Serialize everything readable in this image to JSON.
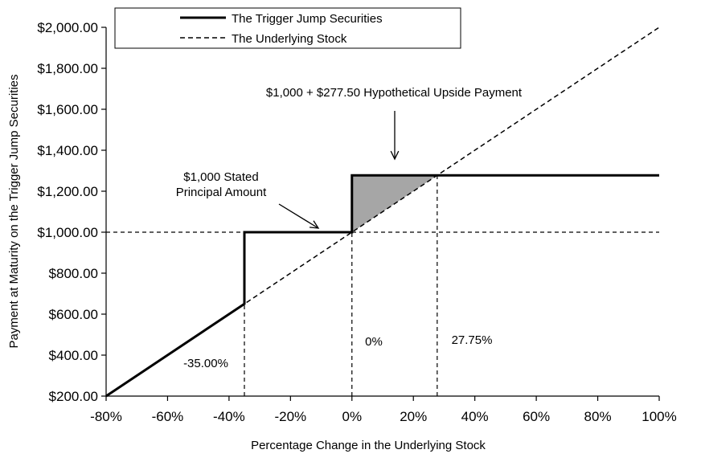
{
  "chart_data": {
    "type": "line",
    "xlabel": "Percentage Change in the Underlying Stock",
    "ylabel": "Payment at Maturity on the Trigger Jump Securities",
    "xlim": [
      -80,
      100
    ],
    "ylim": [
      200,
      2000
    ],
    "x_ticks": [
      -80,
      -60,
      -40,
      -20,
      0,
      20,
      40,
      60,
      80,
      100
    ],
    "x_tick_labels": [
      "-80%",
      "-60%",
      "-40%",
      "-20%",
      "0%",
      "20%",
      "40%",
      "60%",
      "80%",
      "100%"
    ],
    "y_ticks": [
      200,
      400,
      600,
      800,
      1000,
      1200,
      1400,
      1600,
      1800,
      2000
    ],
    "y_tick_labels": [
      "$200.00",
      "$400.00",
      "$600.00",
      "$800.00",
      "$1,000.00",
      "$1,200.00",
      "$1,400.00",
      "$1,600.00",
      "$1,800.00",
      "$2,000.00"
    ],
    "grid": false,
    "legend_position": "top-left",
    "series": [
      {
        "name": "The Trigger Jump Securities",
        "style": "solid",
        "color": "#000000",
        "points": [
          [
            -80,
            200
          ],
          [
            -35,
            650
          ],
          [
            -35,
            1000
          ],
          [
            0,
            1000
          ],
          [
            0,
            1277.5
          ],
          [
            100,
            1277.5
          ]
        ]
      },
      {
        "name": "The Underlying Stock",
        "style": "dashed",
        "color": "#000000",
        "points": [
          [
            -80,
            200
          ],
          [
            100,
            2000
          ]
        ]
      }
    ],
    "reference_lines": [
      {
        "kind": "horizontal",
        "y": 1000,
        "style": "dashed"
      },
      {
        "kind": "vertical",
        "x": -35,
        "y_to": 650,
        "style": "dashed"
      },
      {
        "kind": "vertical",
        "x": 0,
        "y_to": 1000,
        "style": "dashed"
      },
      {
        "kind": "vertical",
        "x": 27.75,
        "y_to": 1277.5,
        "style": "dashed"
      }
    ],
    "shaded_region": {
      "color": "#a6a6a6",
      "points": [
        [
          0,
          1000
        ],
        [
          0,
          1277.5
        ],
        [
          27.75,
          1277.5
        ]
      ]
    },
    "annotations": [
      {
        "id": "upside",
        "lines": [
          "$1,000 + $277.50 Hypothetical Upside Payment"
        ]
      },
      {
        "id": "principal",
        "lines": [
          "$1,000 Stated",
          "Principal Amount"
        ]
      },
      {
        "id": "trigger",
        "lines": [
          "-35.00%"
        ]
      },
      {
        "id": "zero",
        "lines": [
          "0%"
        ]
      },
      {
        "id": "upside_pct",
        "lines": [
          "27.75%"
        ]
      }
    ]
  }
}
